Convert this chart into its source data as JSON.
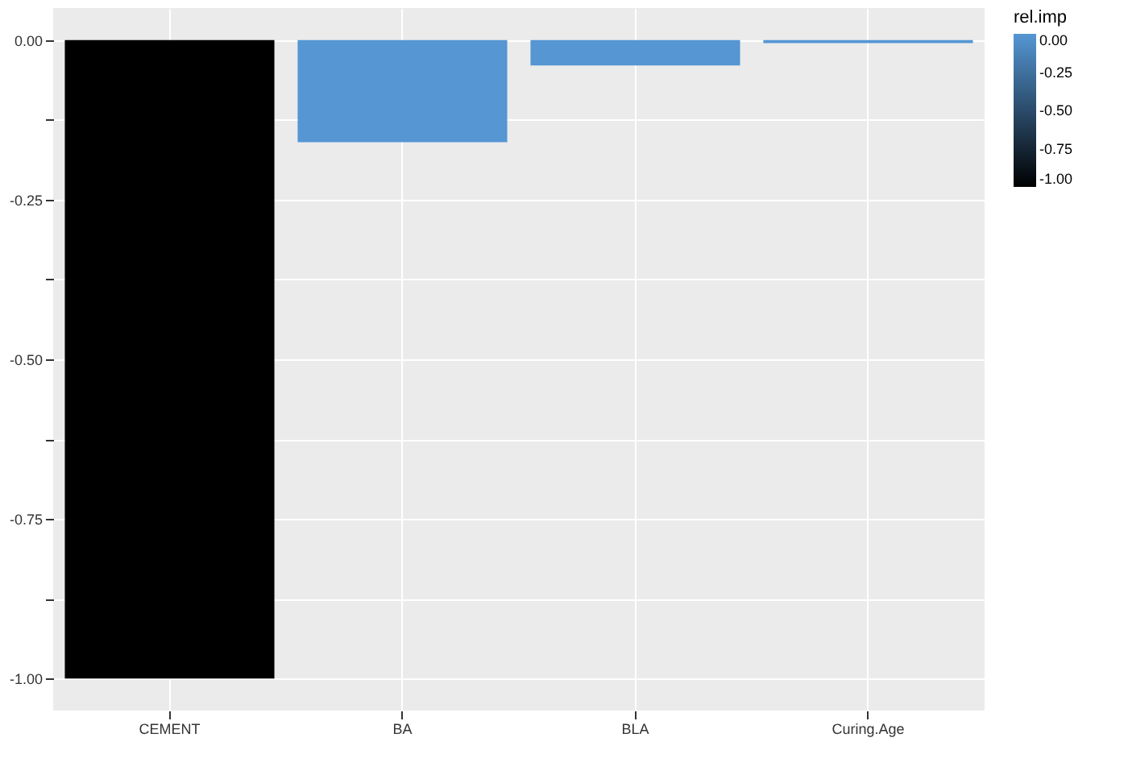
{
  "chart_data": {
    "type": "bar",
    "categories": [
      "CEMENT",
      "BA",
      "BLA",
      "Curing.Age"
    ],
    "values": [
      -1.0,
      -0.16,
      -0.04,
      -0.005
    ],
    "colors": [
      "#000000",
      "#5596d3",
      "#5596d3",
      "#5596d3"
    ],
    "ylim": [
      -1.05,
      0.05
    ],
    "yticks": [
      {
        "value": -1.0,
        "label": "-1.00"
      },
      {
        "value": -0.875,
        "label": null
      },
      {
        "value": -0.75,
        "label": "-0.75"
      },
      {
        "value": -0.625,
        "label": null
      },
      {
        "value": -0.5,
        "label": "-0.50"
      },
      {
        "value": -0.375,
        "label": null
      },
      {
        "value": -0.25,
        "label": "-0.25"
      },
      {
        "value": -0.125,
        "label": null
      },
      {
        "value": 0.0,
        "label": "0.00"
      }
    ],
    "legend_title": "rel.imp",
    "clim": [
      -1.0,
      0.0
    ],
    "cticks": [
      {
        "value": -1.0,
        "label": "-1.00"
      },
      {
        "value": -0.75,
        "label": "-0.75"
      },
      {
        "value": -0.5,
        "label": "-0.50"
      },
      {
        "value": -0.25,
        "label": "-0.25"
      },
      {
        "value": 0.0,
        "label": "0.00"
      }
    ],
    "grid": true
  }
}
